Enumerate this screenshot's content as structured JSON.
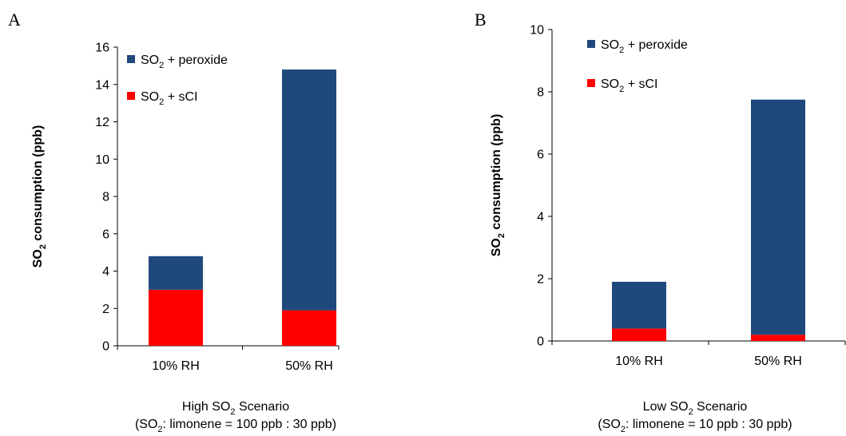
{
  "colors": {
    "peroxide": "#1F497D",
    "sci": "#FF0000",
    "axis": "#000000"
  },
  "chart_data": [
    {
      "type": "bar",
      "stacked": true,
      "panel_label": "A",
      "categories": [
        "10% RH",
        "50% RH"
      ],
      "series": [
        {
          "legend_main": "SO",
          "legend_sub": "2",
          "legend_rest": " + sCI",
          "values": [
            3.0,
            1.9
          ]
        },
        {
          "legend_main": "SO",
          "legend_sub": "2",
          "legend_rest": " + peroxide",
          "values": [
            1.8,
            12.9
          ]
        }
      ],
      "ylabel_main": "SO",
      "ylabel_sub": "2",
      "ylabel_rest": " consumption (ppb)",
      "ylim": [
        0,
        16
      ],
      "yticks": [
        "0",
        "2",
        "4",
        "6",
        "8",
        "10",
        "12",
        "14",
        "16"
      ],
      "caption_line1_main": "High SO",
      "caption_line1_sub": "2",
      "caption_line1_rest": " Scenario",
      "caption_line2_a": "(SO",
      "caption_line2_sub": "2",
      "caption_line2_b": ": limonene  = 100 ppb : 30 ppb)",
      "legend_placement": "top-left",
      "grid": false
    },
    {
      "type": "bar",
      "stacked": true,
      "panel_label": "B",
      "categories": [
        "10% RH",
        "50% RH"
      ],
      "series": [
        {
          "legend_main": "SO",
          "legend_sub": "2",
          "legend_rest": " + sCI",
          "values": [
            0.4,
            0.2
          ]
        },
        {
          "legend_main": "SO",
          "legend_sub": "2",
          "legend_rest": " + peroxide",
          "values": [
            1.5,
            7.55
          ]
        }
      ],
      "ylabel_main": "SO",
      "ylabel_sub": "2",
      "ylabel_rest": " consumption (ppb)",
      "ylim": [
        0,
        10
      ],
      "yticks": [
        "0",
        "2",
        "4",
        "6",
        "8",
        "10"
      ],
      "caption_line1_main": "Low SO",
      "caption_line1_sub": "2",
      "caption_line1_rest": " Scenario",
      "caption_line2_a": "(SO",
      "caption_line2_sub": "2",
      "caption_line2_b": ": limonene  = 10 ppb : 30 ppb)",
      "legend_placement": "top-left",
      "grid": false
    }
  ]
}
